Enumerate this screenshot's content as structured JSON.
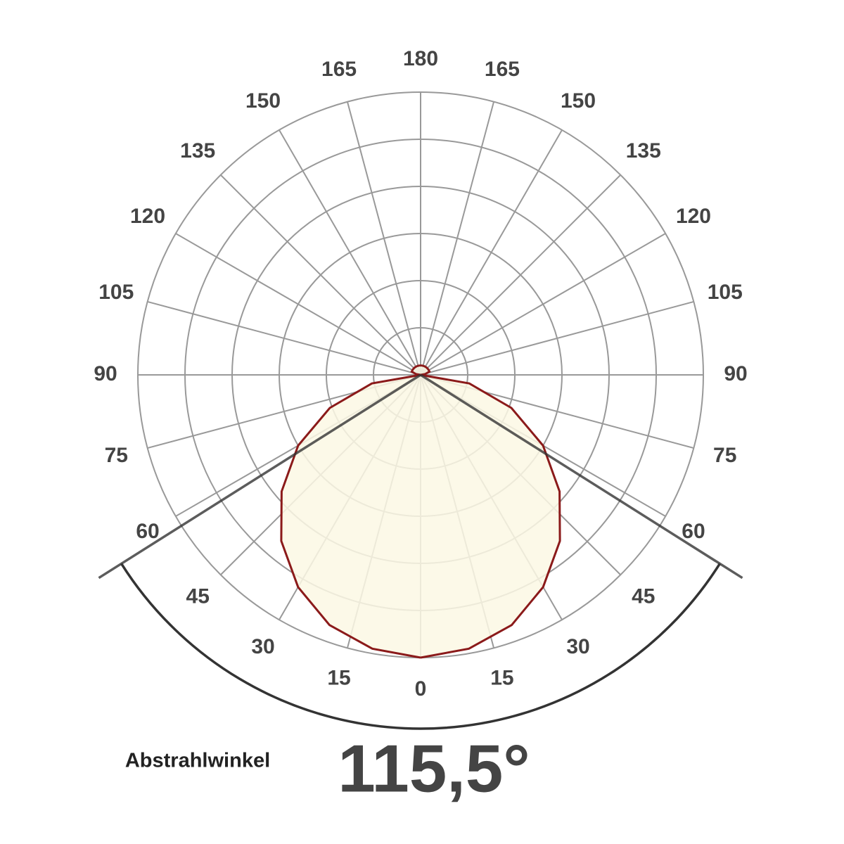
{
  "chart_data": {
    "type": "polar",
    "angles": [
      0,
      15,
      30,
      45,
      60,
      75,
      90,
      105,
      120,
      135,
      150,
      165,
      180
    ],
    "rlim": [
      0,
      6
    ],
    "rticks": [
      1,
      2,
      3,
      4,
      5,
      6
    ],
    "grid": true,
    "series": [
      {
        "x": [
          0,
          10,
          20,
          30,
          40,
          50,
          60,
          70,
          80,
          90,
          100,
          110,
          120,
          130,
          140,
          150,
          160,
          170,
          180
        ],
        "values": [
          6,
          5.9,
          5.65,
          5.2,
          4.6,
          3.85,
          3,
          2.05,
          1.05,
          0,
          0.1,
          0.2,
          0.2,
          0.2,
          0.2,
          0.2,
          0.2,
          0.2,
          0.2
        ],
        "color": "#8b1a1a",
        "fill": "#fbf8e4"
      }
    ],
    "beam_angle_title": "Abstrahlwinkel",
    "beam_angle": {
      "value": 115.5,
      "label": "115,5°"
    }
  }
}
